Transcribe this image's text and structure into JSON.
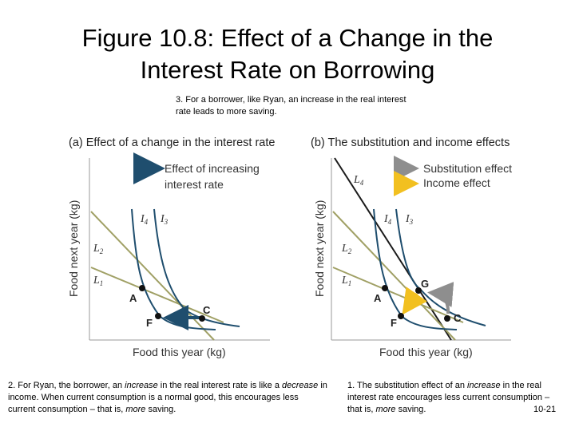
{
  "title": {
    "line1": "Figure 10.8: Effect of a Change in the",
    "line2": "Interest Rate on Borrowing"
  },
  "note3": "3. For a borrower, like Ryan, an increase in the real interest rate leads to more saving.",
  "note2": {
    "p1": "2. For Ryan, the borrower, an ",
    "em1": "increase",
    "p2": " in the real interest rate is like a ",
    "em2": "decrease",
    "p3": " in income. When current consumption is a normal good, this encourages less current consumption – that is, ",
    "em3": "more",
    "p4": " saving."
  },
  "note1": {
    "p1": "1. The substitution effect of an ",
    "em1": "increase",
    "p2": " in the real interest rate encourages less current consumption – that is, ",
    "em2": "more",
    "p3": " saving."
  },
  "slide_number": "10-21",
  "panel_a": {
    "title": "(a) Effect of a change in the interest rate",
    "legend_line1": "Effect of increasing",
    "legend_line2": "interest rate",
    "y_axis": "Food next year (kg)",
    "x_axis": "Food this year (kg)",
    "labels": {
      "L2": "L",
      "L2_sub": "2",
      "L1": "L",
      "L1_sub": "1",
      "I4": "I",
      "I4_sub": "4",
      "I3": "I",
      "I3_sub": "3",
      "A": "A",
      "F": "F",
      "C": "C"
    }
  },
  "panel_b": {
    "title": "(b) The substitution and income effects",
    "legend_sub": "Substitution effect",
    "legend_inc": "Income effect",
    "y_axis": "Food next year (kg)",
    "x_axis": "Food this year (kg)",
    "labels": {
      "L4": "L",
      "L4_sub": "4",
      "L2": "L",
      "L2_sub": "2",
      "L1": "L",
      "L1_sub": "1",
      "I4": "I",
      "I4_sub": "4",
      "I3": "I",
      "I3_sub": "3",
      "A": "A",
      "F": "F",
      "G": "G",
      "C": "C"
    }
  },
  "colors": {
    "budget_olive": "#a0a065",
    "budget_dark": "#1a1a1a",
    "indiff_navy": "#1f4e6e",
    "arrow_navy": "#1f4e6e",
    "arrow_gray": "#8e8e8e",
    "arrow_yellow": "#f2c020"
  }
}
